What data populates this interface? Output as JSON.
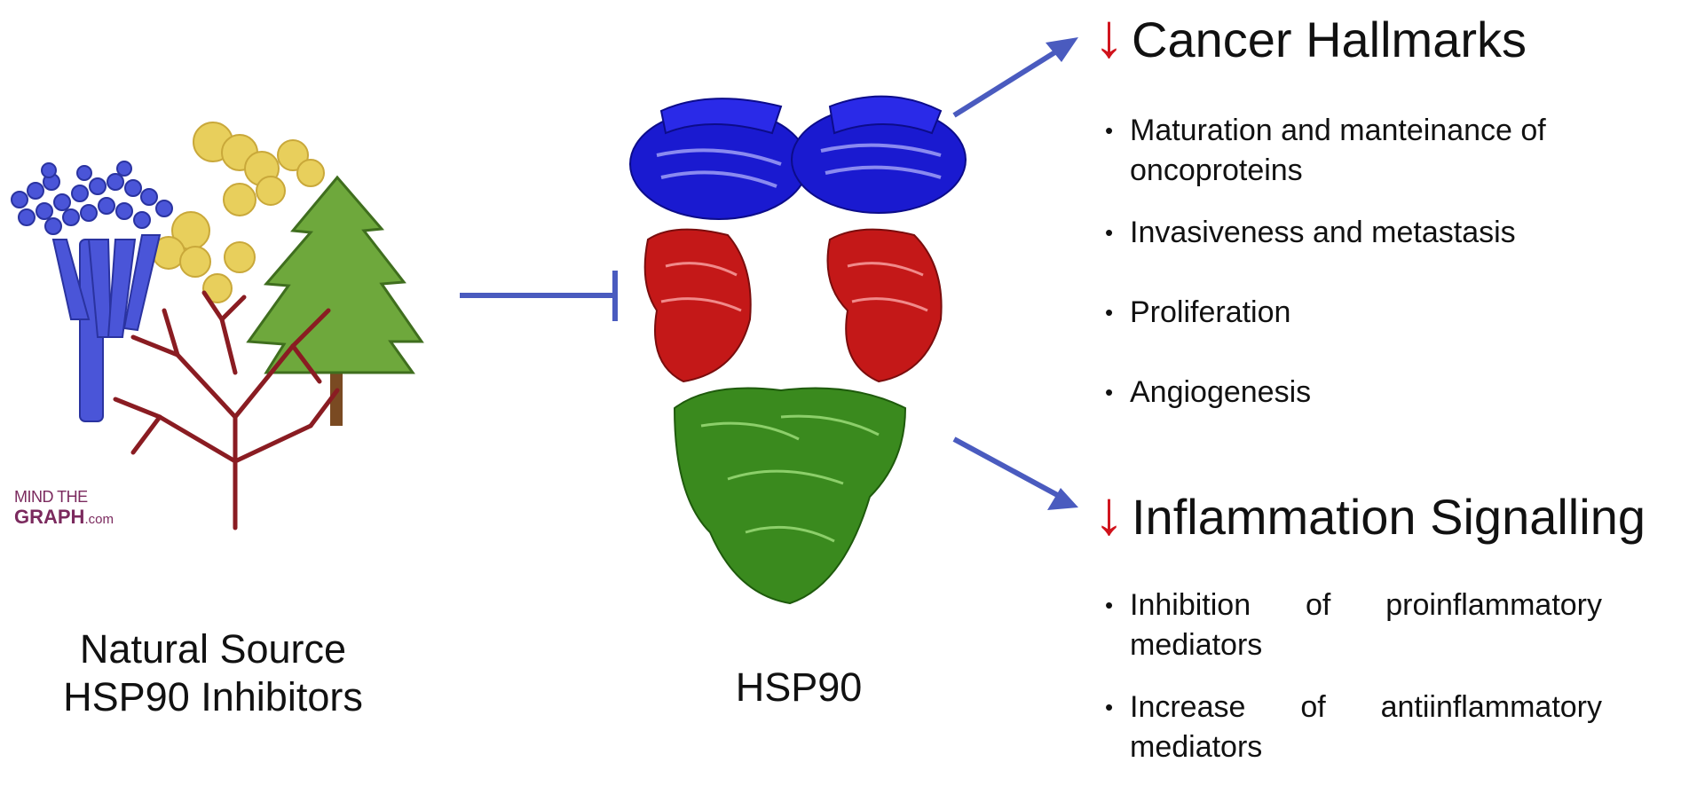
{
  "left_caption": [
    "Natural Source",
    "HSP90 Inhibitors"
  ],
  "center_caption": "HSP90",
  "logo": {
    "line1": "MIND THE",
    "line2": "GRAPH",
    "suffix": ".com"
  },
  "sections": [
    {
      "heading": "Cancer Hallmarks",
      "items": [
        [
          "Maturation and manteinance of",
          "oncoproteins"
        ],
        [
          "Invasiveness and metastasis"
        ],
        [
          "Proliferation"
        ],
        [
          "Angiogenesis"
        ]
      ]
    },
    {
      "heading": "Inflammation Signalling",
      "items": [
        [
          "Inhibition of proinflammatory",
          "mediators"
        ],
        [
          "Increase of antiinflammatory",
          "mediators"
        ]
      ]
    }
  ],
  "colors": {
    "connector": "#4a5bbf",
    "down_arrow": "#d0121b",
    "protein_top": "#1a1ad0",
    "protein_middle": "#c41818",
    "protein_bottom": "#3a8a1e",
    "fungus": "#4a55d8",
    "spores": "#e8cf5c",
    "tree": "#6ea83c",
    "seaweed": "#8a1c22"
  },
  "icons": [
    "fungus-icon",
    "spores-icon",
    "pine-tree-icon",
    "red-seaweed-icon",
    "hsp90-protein-icon"
  ]
}
